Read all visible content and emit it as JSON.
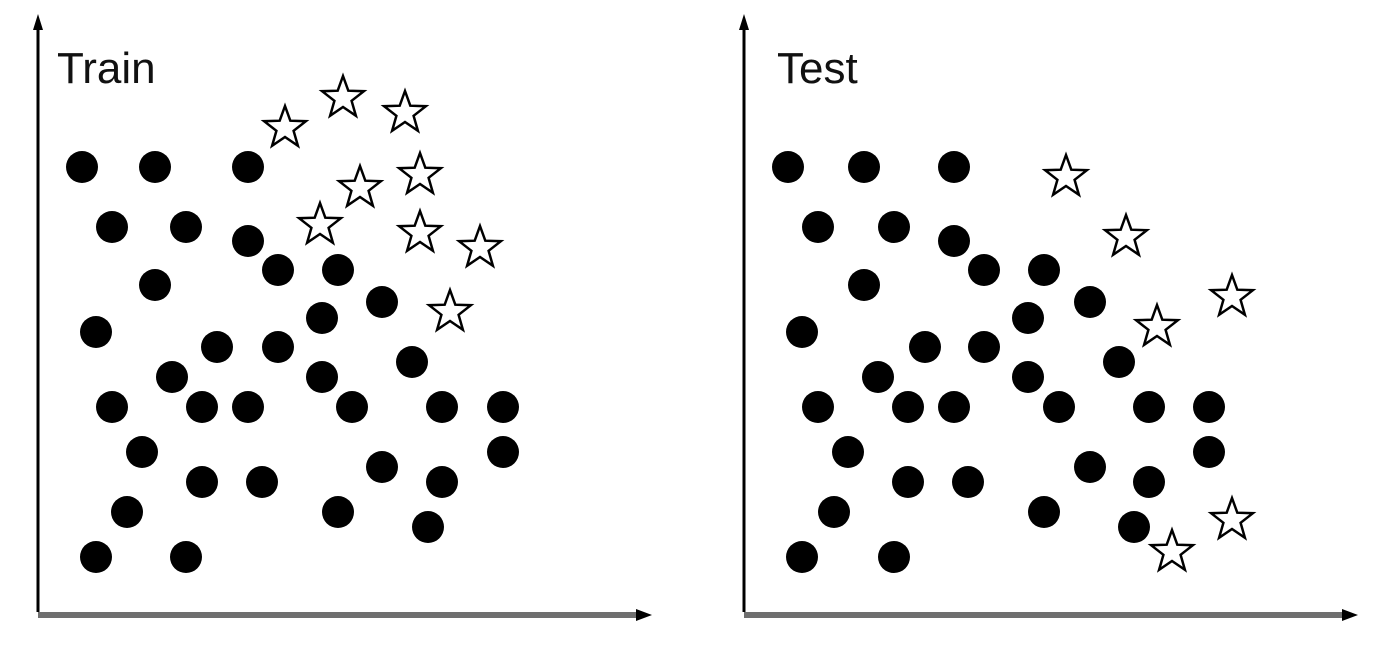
{
  "colors": {
    "background": "#ffffff",
    "axis": "#000000",
    "x_axis_shadow": "#6f6f6f",
    "dot_fill": "#000000",
    "star_fill": "#ffffff",
    "star_stroke": "#000000"
  },
  "panels": [
    {
      "title": "Train",
      "circles": [
        [
          82,
          167
        ],
        [
          155,
          167
        ],
        [
          248,
          167
        ],
        [
          112,
          227
        ],
        [
          186,
          227
        ],
        [
          248,
          241
        ],
        [
          155,
          285
        ],
        [
          278,
          270
        ],
        [
          338,
          270
        ],
        [
          96,
          332
        ],
        [
          322,
          318
        ],
        [
          382,
          302
        ],
        [
          217,
          347
        ],
        [
          278,
          347
        ],
        [
          172,
          377
        ],
        [
          412,
          362
        ],
        [
          322,
          377
        ],
        [
          112,
          407
        ],
        [
          202,
          407
        ],
        [
          248,
          407
        ],
        [
          352,
          407
        ],
        [
          442,
          407
        ],
        [
          503,
          407
        ],
        [
          142,
          452
        ],
        [
          503,
          452
        ],
        [
          202,
          482
        ],
        [
          262,
          482
        ],
        [
          382,
          467
        ],
        [
          442,
          482
        ],
        [
          127,
          512
        ],
        [
          338,
          512
        ],
        [
          428,
          527
        ],
        [
          96,
          557
        ],
        [
          186,
          557
        ]
      ],
      "stars": [
        [
          285,
          128
        ],
        [
          343,
          98
        ],
        [
          405,
          113
        ],
        [
          420,
          175
        ],
        [
          360,
          188
        ],
        [
          320,
          225
        ],
        [
          420,
          233
        ],
        [
          480,
          248
        ],
        [
          450,
          312
        ]
      ]
    },
    {
      "title": "Test",
      "circles": [
        [
          788,
          167
        ],
        [
          864,
          167
        ],
        [
          954,
          167
        ],
        [
          818,
          227
        ],
        [
          894,
          227
        ],
        [
          954,
          241
        ],
        [
          864,
          285
        ],
        [
          984,
          270
        ],
        [
          1044,
          270
        ],
        [
          802,
          332
        ],
        [
          1028,
          318
        ],
        [
          1090,
          302
        ],
        [
          925,
          347
        ],
        [
          984,
          347
        ],
        [
          878,
          377
        ],
        [
          1119,
          362
        ],
        [
          1028,
          377
        ],
        [
          818,
          407
        ],
        [
          908,
          407
        ],
        [
          954,
          407
        ],
        [
          1059,
          407
        ],
        [
          1149,
          407
        ],
        [
          1209,
          407
        ],
        [
          848,
          452
        ],
        [
          1209,
          452
        ],
        [
          908,
          482
        ],
        [
          968,
          482
        ],
        [
          1090,
          467
        ],
        [
          1149,
          482
        ],
        [
          834,
          512
        ],
        [
          1044,
          512
        ],
        [
          1134,
          527
        ],
        [
          802,
          557
        ],
        [
          894,
          557
        ]
      ],
      "stars": [
        [
          1066,
          177
        ],
        [
          1126,
          237
        ],
        [
          1232,
          297
        ],
        [
          1157,
          327
        ],
        [
          1232,
          520
        ],
        [
          1172,
          552
        ]
      ]
    }
  ]
}
